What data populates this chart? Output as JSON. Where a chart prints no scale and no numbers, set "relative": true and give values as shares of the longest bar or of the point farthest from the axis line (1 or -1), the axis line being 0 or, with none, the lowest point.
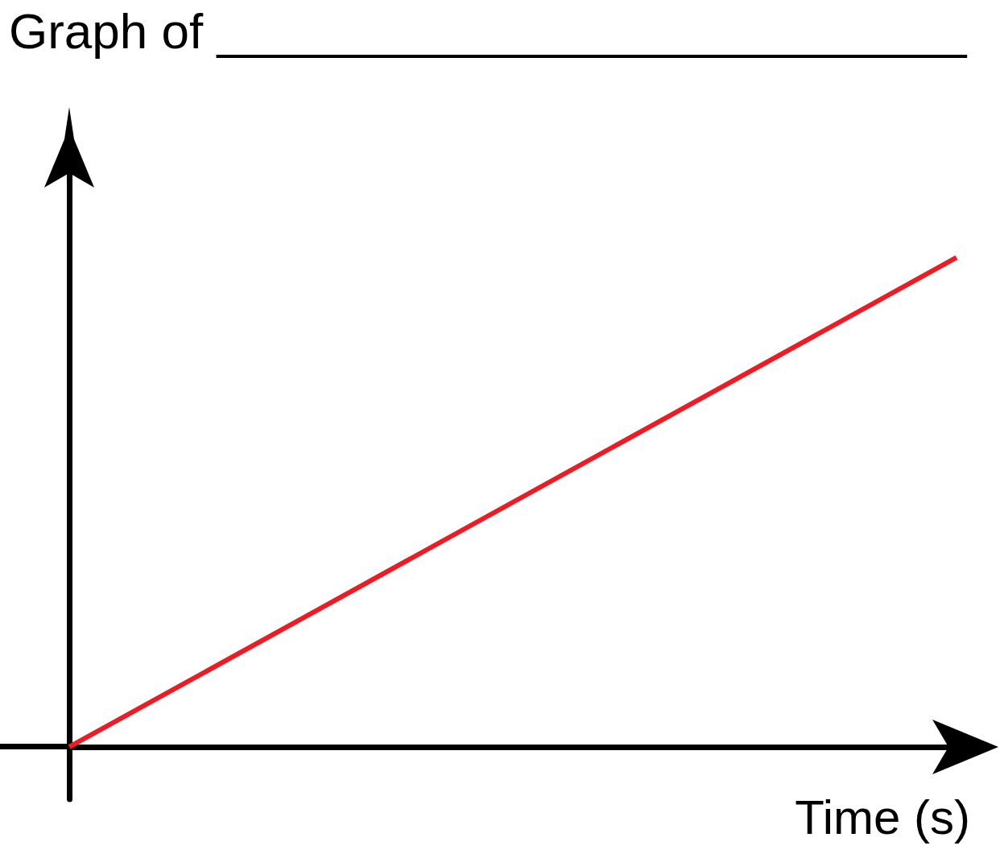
{
  "chart_data": {
    "type": "line",
    "title": "Graph of ___________________________",
    "xlabel": "Time (s)",
    "categories": [
      null,
      null
    ],
    "series": [
      {
        "color": "#ed1c24",
        "values": [
          0,
          1
        ]
      }
    ],
    "relative": true,
    "grid": false,
    "marker": "none",
    "line_style": "solid"
  }
}
